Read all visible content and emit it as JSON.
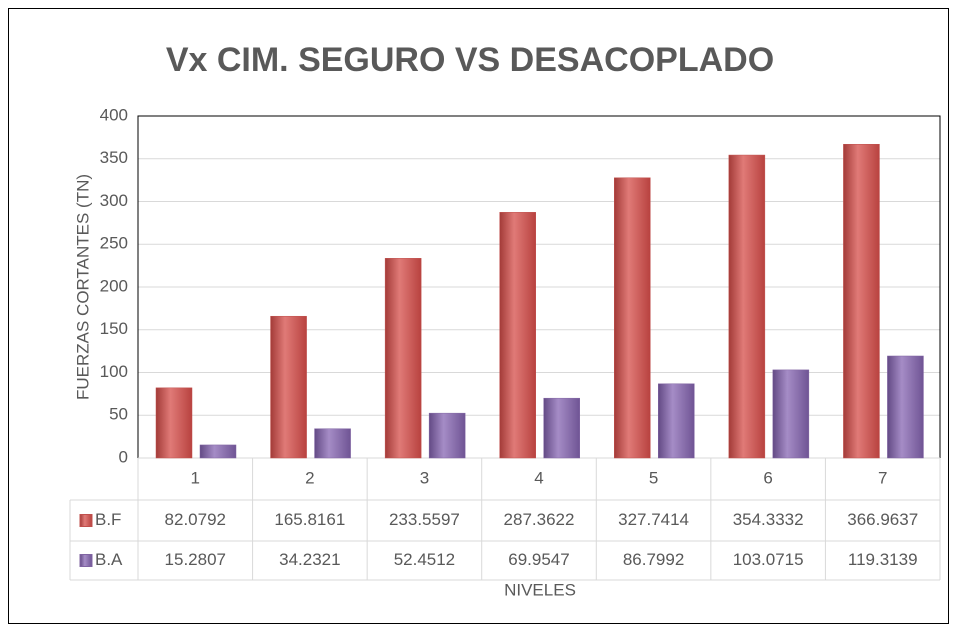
{
  "chart_data": {
    "type": "bar",
    "title": "Vx CIM. SEGURO VS DESACOPLADO",
    "x_label": "NIVELES",
    "y_label": "FUERZAS CORTANTES (TN)",
    "categories": [
      "1",
      "2",
      "3",
      "4",
      "5",
      "6",
      "7"
    ],
    "series": [
      {
        "name": "B.F",
        "color": "#c0504d",
        "values": [
          82.0792,
          165.8161,
          233.5597,
          287.3622,
          327.7414,
          354.3332,
          366.9637
        ]
      },
      {
        "name": "B.A",
        "color": "#8064a2",
        "values": [
          15.2807,
          34.2321,
          52.4512,
          69.9547,
          86.7992,
          103.0715,
          119.3139
        ]
      }
    ],
    "ylim": [
      0,
      400
    ],
    "yticks": [
      0,
      50,
      100,
      150,
      200,
      250,
      300,
      350,
      400
    ],
    "grid": true
  }
}
